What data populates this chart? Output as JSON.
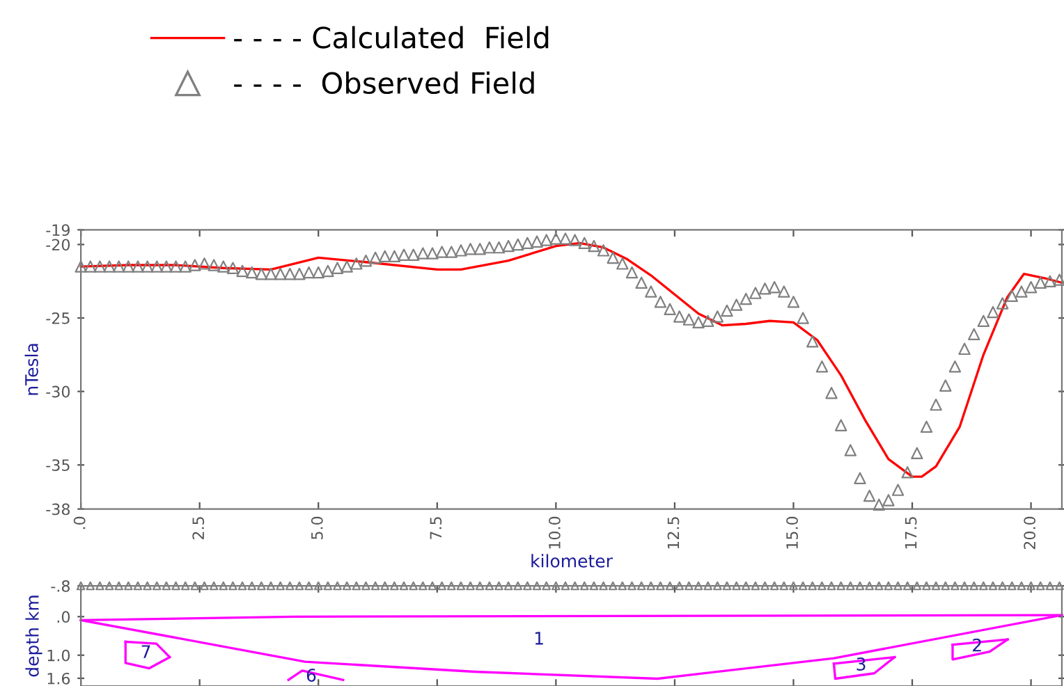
{
  "chart_data": [
    {
      "type": "line",
      "xlabel": "kilometer",
      "ylabel": "nTesla",
      "legend": "top",
      "grid": false,
      "xlim": [
        0,
        20.65
      ],
      "ylim": [
        -38,
        -19
      ],
      "xticks": [
        {
          "value": 0,
          "label": ".0"
        },
        2.5,
        {
          "value": 5,
          "label": "5.0"
        },
        7.5,
        {
          "value": 10,
          "label": "10.0"
        },
        12.5,
        {
          "value": 15,
          "label": "15.0"
        },
        17.5,
        {
          "value": 20,
          "label": "20.0"
        }
      ],
      "yticks": [
        -38,
        -35,
        -30,
        -25,
        -20,
        -19
      ],
      "series": [
        {
          "name": "- - - - Calculated  Field",
          "color": "#ff0000",
          "marker": "none",
          "line_style": "solid",
          "x": [
            0,
            1,
            2,
            3,
            4,
            5,
            6,
            7.5,
            8,
            9,
            10,
            10.5,
            11,
            11.5,
            12,
            12.5,
            13,
            13.5,
            14,
            14.5,
            15,
            15.5,
            16,
            16.5,
            17,
            17.5,
            17.7,
            18,
            18.5,
            19,
            19.5,
            19.85,
            20.3,
            20.65
          ],
          "values": [
            -21.5,
            -21.4,
            -21.4,
            -21.6,
            -21.7,
            -20.9,
            -21.2,
            -21.7,
            -21.7,
            -21.1,
            -20.1,
            -19.9,
            -20.2,
            -21.0,
            -22.1,
            -23.4,
            -24.7,
            -25.5,
            -25.4,
            -25.2,
            -25.3,
            -26.5,
            -28.9,
            -31.9,
            -34.6,
            -35.8,
            -35.8,
            -35.1,
            -32.4,
            -27.5,
            -23.6,
            -22.0,
            -22.3,
            -22.6
          ]
        },
        {
          "name": "- - - -  Observed Field",
          "type": "scatter",
          "color": "#808080",
          "marker": "triangle",
          "x": [
            0,
            0.2,
            0.4,
            0.6,
            0.8,
            1,
            1.2,
            1.4,
            1.6,
            1.8,
            2,
            2.2,
            2.4,
            2.6,
            2.8,
            3,
            3.2,
            3.4,
            3.6,
            3.8,
            4,
            4.2,
            4.4,
            4.6,
            4.8,
            5,
            5.2,
            5.4,
            5.6,
            5.8,
            6,
            6.2,
            6.4,
            6.6,
            6.8,
            7,
            7.2,
            7.4,
            7.6,
            7.8,
            8,
            8.2,
            8.4,
            8.6,
            8.8,
            9,
            9.2,
            9.4,
            9.6,
            9.8,
            10,
            10.2,
            10.4,
            10.6,
            10.8,
            11,
            11.2,
            11.4,
            11.6,
            11.8,
            12,
            12.2,
            12.4,
            12.6,
            12.8,
            13,
            13.2,
            13.4,
            13.6,
            13.8,
            14,
            14.2,
            14.4,
            14.6,
            14.8,
            15,
            15.2,
            15.4,
            15.6,
            15.8,
            16,
            16.2,
            16.4,
            16.6,
            16.8,
            17,
            17.2,
            17.4,
            17.6,
            17.8,
            18,
            18.2,
            18.4,
            18.6,
            18.8,
            19,
            19.2,
            19.4,
            19.6,
            19.8,
            20,
            20.2,
            20.4,
            20.6
          ],
          "values": [
            -21.5,
            -21.5,
            -21.5,
            -21.5,
            -21.5,
            -21.5,
            -21.5,
            -21.5,
            -21.5,
            -21.5,
            -21.5,
            -21.5,
            -21.4,
            -21.3,
            -21.4,
            -21.5,
            -21.6,
            -21.8,
            -21.9,
            -22.0,
            -22.0,
            -22.0,
            -22.0,
            -22.0,
            -21.9,
            -21.9,
            -21.8,
            -21.6,
            -21.5,
            -21.3,
            -21.1,
            -20.9,
            -20.8,
            -20.8,
            -20.7,
            -20.7,
            -20.6,
            -20.6,
            -20.5,
            -20.5,
            -20.4,
            -20.3,
            -20.3,
            -20.2,
            -20.2,
            -20.1,
            -20.0,
            -19.9,
            -19.8,
            -19.7,
            -19.6,
            -19.6,
            -19.7,
            -19.9,
            -20.1,
            -20.4,
            -20.9,
            -21.3,
            -21.9,
            -22.6,
            -23.2,
            -23.9,
            -24.4,
            -24.9,
            -25.1,
            -25.3,
            -25.2,
            -24.9,
            -24.5,
            -24.1,
            -23.7,
            -23.3,
            -23.0,
            -22.9,
            -23.2,
            -23.9,
            -25.0,
            -26.6,
            -28.3,
            -30.1,
            -32.3,
            -34.0,
            -35.9,
            -37.1,
            -37.7,
            -37.4,
            -36.7,
            -35.5,
            -34.2,
            -32.4,
            -30.9,
            -29.6,
            -28.3,
            -27.1,
            -26.1,
            -25.2,
            -24.6,
            -24.0,
            -23.5,
            -23.2,
            -22.9,
            -22.6,
            -22.5,
            -22.4
          ]
        }
      ]
    },
    {
      "type": "line",
      "ylabel": "depth km",
      "grid": false,
      "tick_labels": "y",
      "xlim": [
        0,
        20.65
      ],
      "ylim": [
        1.8,
        -0.8
      ],
      "yticks": [
        {
          "value": -0.8,
          "label": "-.8"
        },
        {
          "value": 0,
          "label": ".0"
        },
        {
          "value": 1,
          "label": "1.0"
        },
        1.6
      ],
      "series": [
        {
          "type": "scatter",
          "color": "#808080",
          "marker": "triangle",
          "x": [
            0,
            0.2,
            0.4,
            0.6,
            0.8,
            1,
            1.2,
            1.4,
            1.6,
            1.8,
            2,
            2.2,
            2.4,
            2.6,
            2.8,
            3,
            3.2,
            3.4,
            3.6,
            3.8,
            4,
            4.2,
            4.4,
            4.6,
            4.8,
            5,
            5.2,
            5.4,
            5.6,
            5.8,
            6,
            6.2,
            6.4,
            6.6,
            6.8,
            7,
            7.2,
            7.4,
            7.6,
            7.8,
            8,
            8.2,
            8.4,
            8.6,
            8.8,
            9,
            9.2,
            9.4,
            9.6,
            9.8,
            10,
            10.2,
            10.4,
            10.6,
            10.8,
            11,
            11.2,
            11.4,
            11.6,
            11.8,
            12,
            12.2,
            12.4,
            12.6,
            12.8,
            13,
            13.2,
            13.4,
            13.6,
            13.8,
            14,
            14.2,
            14.4,
            14.6,
            14.8,
            15,
            15.2,
            15.4,
            15.6,
            15.8,
            16,
            16.2,
            16.4,
            16.6,
            16.8,
            17,
            17.2,
            17.4,
            17.6,
            17.8,
            18,
            18.2,
            18.4,
            18.6,
            18.8,
            19,
            19.2,
            19.4,
            19.6,
            19.8,
            20,
            20.2,
            20.4,
            20.6
          ],
          "values": [
            -0.8,
            -0.8,
            -0.8,
            -0.8,
            -0.8,
            -0.8,
            -0.8,
            -0.8,
            -0.8,
            -0.8,
            -0.8,
            -0.8,
            -0.8,
            -0.8,
            -0.8,
            -0.8,
            -0.8,
            -0.8,
            -0.8,
            -0.8,
            -0.8,
            -0.8,
            -0.8,
            -0.8,
            -0.8,
            -0.8,
            -0.8,
            -0.8,
            -0.8,
            -0.8,
            -0.8,
            -0.8,
            -0.8,
            -0.8,
            -0.8,
            -0.8,
            -0.8,
            -0.8,
            -0.8,
            -0.8,
            -0.8,
            -0.8,
            -0.8,
            -0.8,
            -0.8,
            -0.8,
            -0.8,
            -0.8,
            -0.8,
            -0.8,
            -0.8,
            -0.8,
            -0.8,
            -0.8,
            -0.8,
            -0.8,
            -0.8,
            -0.8,
            -0.8,
            -0.8,
            -0.8,
            -0.8,
            -0.8,
            -0.8,
            -0.8,
            -0.8,
            -0.8,
            -0.8,
            -0.8,
            -0.8,
            -0.8,
            -0.8,
            -0.8,
            -0.8,
            -0.8,
            -0.8,
            -0.8,
            -0.8,
            -0.8,
            -0.8,
            -0.8,
            -0.8,
            -0.8,
            -0.8,
            -0.8,
            -0.8,
            -0.8,
            -0.8,
            -0.8,
            -0.8,
            -0.8,
            -0.8,
            -0.8,
            -0.8,
            -0.8,
            -0.8,
            -0.8,
            -0.8,
            -0.8,
            -0.8,
            -0.8,
            -0.8,
            -0.8,
            -0.8
          ]
        },
        {
          "name": "1",
          "color": "#ff00ff",
          "marker": "none",
          "line_style": "solid",
          "x": [
            0,
            4.5,
            20.65
          ],
          "values": [
            0.09,
            0.0,
            -0.04
          ]
        },
        {
          "color": "#ff00ff",
          "marker": "none",
          "line_style": "solid",
          "x": [
            0,
            4.72,
            8.29,
            12.14,
            15.85,
            20.65
          ],
          "values": [
            0.09,
            1.17,
            1.43,
            1.61,
            1.08,
            -0.04
          ]
        },
        {
          "name": "7",
          "color": "#ff00ff",
          "marker": "none",
          "line_style": "solid",
          "x": [
            0.94,
            1.59,
            1.87
          ],
          "values": [
            0.65,
            0.7,
            1.05
          ]
        },
        {
          "color": "#ff00ff",
          "marker": "none",
          "line_style": "solid",
          "x": [
            0.94,
            0.94,
            1.44,
            1.87
          ],
          "values": [
            0.65,
            1.2,
            1.34,
            1.05
          ]
        },
        {
          "name": "6",
          "color": "#ff00ff",
          "marker": "none",
          "line_style": "solid",
          "x": [
            4.37,
            4.66,
            5.52
          ],
          "values": [
            1.64,
            1.4,
            1.64
          ]
        },
        {
          "name": "3",
          "color": "#ff00ff",
          "marker": "none",
          "line_style": "solid",
          "x": [
            15.85,
            17.13
          ],
          "values": [
            1.22,
            1.05
          ]
        },
        {
          "color": "#ff00ff",
          "marker": "none",
          "line_style": "solid",
          "x": [
            15.85,
            15.88,
            16.7,
            17.13
          ],
          "values": [
            1.22,
            1.61,
            1.47,
            1.05
          ]
        },
        {
          "name": "2",
          "color": "#ff00ff",
          "marker": "none",
          "line_style": "solid",
          "x": [
            18.35,
            19.51
          ],
          "values": [
            0.73,
            0.59
          ]
        },
        {
          "color": "#ff00ff",
          "marker": "none",
          "line_style": "solid",
          "x": [
            18.35,
            18.35,
            19.13,
            19.51
          ],
          "values": [
            0.73,
            1.11,
            0.91,
            0.59
          ]
        }
      ]
    }
  ]
}
